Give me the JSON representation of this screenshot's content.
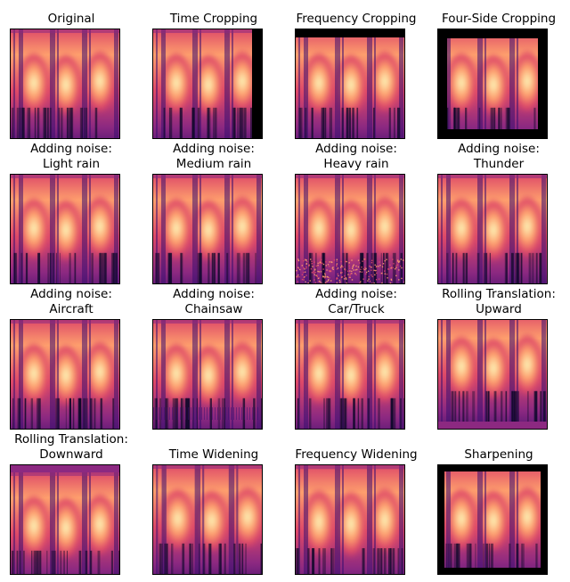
{
  "figure": {
    "panels": [
      {
        "title": [
          "Original"
        ],
        "variant": "original"
      },
      {
        "title": [
          "Time Cropping"
        ],
        "variant": "time_crop"
      },
      {
        "title": [
          "Frequency Cropping"
        ],
        "variant": "freq_crop"
      },
      {
        "title": [
          "Four-Side Cropping"
        ],
        "variant": "four_side_crop"
      },
      {
        "title": [
          "Adding noise:",
          "Light rain"
        ],
        "variant": "light_rain"
      },
      {
        "title": [
          "Adding noise:",
          "Medium rain"
        ],
        "variant": "medium_rain"
      },
      {
        "title": [
          "Adding noise:",
          "Heavy rain"
        ],
        "variant": "heavy_rain"
      },
      {
        "title": [
          "Adding noise:",
          "Thunder"
        ],
        "variant": "thunder"
      },
      {
        "title": [
          "Adding noise:",
          "Aircraft"
        ],
        "variant": "aircraft"
      },
      {
        "title": [
          "Adding noise:",
          "Chainsaw"
        ],
        "variant": "chainsaw"
      },
      {
        "title": [
          "Adding noise:",
          "Car/Truck"
        ],
        "variant": "car_truck"
      },
      {
        "title": [
          "Rolling Translation:",
          "Upward"
        ],
        "variant": "roll_up"
      },
      {
        "title": [
          "Rolling Translation:",
          "Downward"
        ],
        "variant": "roll_down"
      },
      {
        "title": [
          "Time Widening"
        ],
        "variant": "time_widen"
      },
      {
        "title": [
          "Frequency Widening"
        ],
        "variant": "freq_widen"
      },
      {
        "title": [
          "Sharpening"
        ],
        "variant": "sharpen"
      }
    ],
    "colormap": [
      "#0d0829",
      "#3b0f6f",
      "#8c2981",
      "#de4968",
      "#fe9f6d",
      "#fcfdbf"
    ],
    "crop_color": "#000000"
  }
}
